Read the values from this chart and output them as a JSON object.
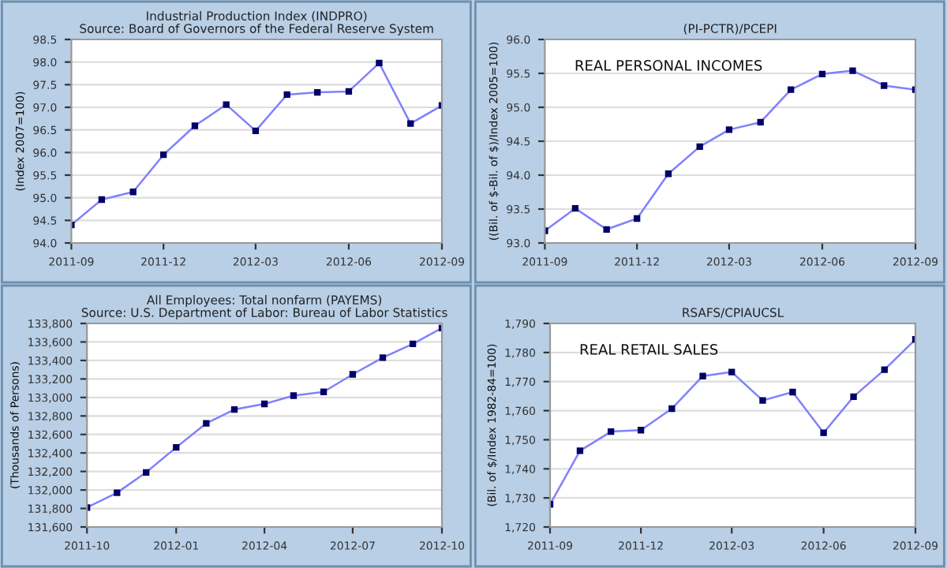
{
  "chart_data": [
    {
      "type": "line",
      "title": "Industrial Production Index (INDPRO)",
      "subtitle": "Source: Board of Governors of the Federal Reserve System",
      "ylabel": "(Index 2007=100)",
      "x": [
        "2011-09",
        "2011-10",
        "2011-11",
        "2011-12",
        "2012-01",
        "2012-02",
        "2012-03",
        "2012-04",
        "2012-05",
        "2012-06",
        "2012-07",
        "2012-08",
        "2012-09"
      ],
      "series": [
        {
          "color": "#8080ff",
          "values": [
            94.4,
            94.96,
            95.13,
            95.95,
            96.59,
            97.06,
            96.48,
            97.28,
            97.33,
            97.35,
            97.98,
            96.64,
            97.04
          ]
        }
      ],
      "xlim": [
        "2011-09",
        "2012-09"
      ],
      "xticks": [
        "2011-09",
        "2011-12",
        "2012-03",
        "2012-06",
        "2012-09"
      ],
      "ylim": [
        94.0,
        98.5
      ],
      "yticks": [
        {
          "value": 94.0,
          "label": "94.0"
        },
        {
          "value": 94.5,
          "label": "94.5"
        },
        {
          "value": 95.0,
          "label": "95.0"
        },
        {
          "value": 95.5,
          "label": "95.5"
        },
        {
          "value": 96.0,
          "label": "96.0"
        },
        {
          "value": 96.5,
          "label": "96.5"
        },
        {
          "value": 97.0,
          "label": "97.0"
        },
        {
          "value": 97.5,
          "label": "97.5"
        },
        {
          "value": 98.0,
          "label": "98.0"
        },
        {
          "value": 98.5,
          "label": "98.5"
        }
      ],
      "grid": "y",
      "marker": "square",
      "line_style": "solid"
    },
    {
      "type": "line",
      "title": "(PI-PCTR)/PCEPI",
      "ylabel": "((Bil. of $-Bil. of $)/Index 2005=100)",
      "annotations": [
        "REAL PERSONAL INCOMES"
      ],
      "x": [
        "2011-09",
        "2011-10",
        "2011-11",
        "2011-12",
        "2012-01",
        "2012-02",
        "2012-03",
        "2012-04",
        "2012-05",
        "2012-06",
        "2012-07",
        "2012-08",
        "2012-09"
      ],
      "series": [
        {
          "color": "#8080ff",
          "values": [
            93.18,
            93.51,
            93.2,
            93.36,
            94.02,
            94.42,
            94.67,
            94.78,
            95.26,
            95.49,
            95.54,
            95.32,
            95.26
          ]
        }
      ],
      "xlim": [
        "2011-09",
        "2012-09"
      ],
      "xticks": [
        "2011-09",
        "2011-12",
        "2012-03",
        "2012-06",
        "2012-09"
      ],
      "ylim": [
        93.0,
        96.0
      ],
      "yticks": [
        {
          "value": 93.0,
          "label": "93.0"
        },
        {
          "value": 93.5,
          "label": "93.5"
        },
        {
          "value": 94.0,
          "label": "94.0"
        },
        {
          "value": 94.5,
          "label": "94.5"
        },
        {
          "value": 95.0,
          "label": "95.0"
        },
        {
          "value": 95.5,
          "label": "95.5"
        },
        {
          "value": 96.0,
          "label": "96.0"
        }
      ],
      "grid": "y",
      "marker": "square",
      "line_style": "solid"
    },
    {
      "type": "line",
      "title": "All Employees: Total nonfarm (PAYEMS)",
      "subtitle": "Source: U.S. Department of Labor: Bureau of Labor Statistics",
      "ylabel": "(Thousands of Persons)",
      "x": [
        "2011-10",
        "2011-11",
        "2011-12",
        "2012-01",
        "2012-02",
        "2012-03",
        "2012-04",
        "2012-05",
        "2012-06",
        "2012-07",
        "2012-08",
        "2012-09",
        "2012-10"
      ],
      "series": [
        {
          "color": "#8080ff",
          "values": [
            131810,
            131970,
            132190,
            132460,
            132720,
            132870,
            132930,
            133020,
            133060,
            133250,
            133430,
            133580,
            133750
          ]
        }
      ],
      "xlim": [
        "2011-10",
        "2012-10"
      ],
      "xticks": [
        "2011-10",
        "2012-01",
        "2012-04",
        "2012-07",
        "2012-10"
      ],
      "ylim": [
        131600,
        133800
      ],
      "yticks": [
        {
          "value": 131600,
          "label": "131,600"
        },
        {
          "value": 131800,
          "label": "131,800"
        },
        {
          "value": 132000,
          "label": "132,000"
        },
        {
          "value": 132200,
          "label": "132,200"
        },
        {
          "value": 132400,
          "label": "132,400"
        },
        {
          "value": 132600,
          "label": "132,600"
        },
        {
          "value": 132800,
          "label": "132,800"
        },
        {
          "value": 133000,
          "label": "133,000"
        },
        {
          "value": 133200,
          "label": "133,200"
        },
        {
          "value": 133400,
          "label": "133,400"
        },
        {
          "value": 133600,
          "label": "133,600"
        },
        {
          "value": 133800,
          "label": "133,800"
        }
      ],
      "grid": "y",
      "marker": "square",
      "line_style": "solid"
    },
    {
      "type": "line",
      "title": "RSAFS/CPIAUCSL",
      "ylabel": "(Bil. of $/Index 1982-84=100)",
      "annotations": [
        "REAL RETAIL SALES"
      ],
      "x": [
        "2011-09",
        "2011-10",
        "2011-11",
        "2011-12",
        "2012-01",
        "2012-02",
        "2012-03",
        "2012-04",
        "2012-05",
        "2012-06",
        "2012-07",
        "2012-08",
        "2012-09"
      ],
      "series": [
        {
          "color": "#8080ff",
          "values": [
            1727.8,
            1746.2,
            1752.8,
            1753.3,
            1760.7,
            1771.9,
            1773.3,
            1763.5,
            1766.4,
            1752.4,
            1764.8,
            1774.1,
            1784.5
          ]
        }
      ],
      "xlim": [
        "2011-09",
        "2012-09"
      ],
      "xticks": [
        "2011-09",
        "2011-12",
        "2012-03",
        "2012-06",
        "2012-09"
      ],
      "ylim": [
        1720,
        1790
      ],
      "yticks": [
        {
          "value": 1720,
          "label": "1,720"
        },
        {
          "value": 1730,
          "label": "1,730"
        },
        {
          "value": 1740,
          "label": "1,740"
        },
        {
          "value": 1750,
          "label": "1,750"
        },
        {
          "value": 1760,
          "label": "1,760"
        },
        {
          "value": 1770,
          "label": "1,770"
        },
        {
          "value": 1780,
          "label": "1,780"
        },
        {
          "value": 1790,
          "label": "1,790"
        }
      ],
      "grid": "y",
      "marker": "square",
      "line_style": "solid"
    }
  ]
}
